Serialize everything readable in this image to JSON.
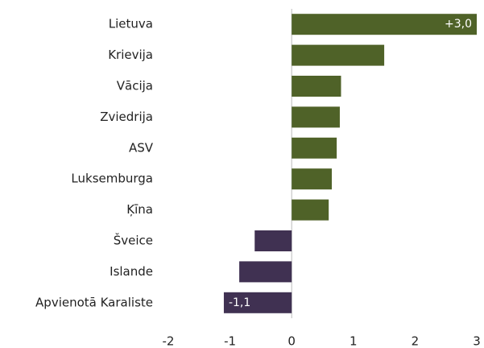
{
  "chart_data": {
    "type": "hbar",
    "categories": [
      "Lietuva",
      "Krievija",
      "Vācija",
      "Zviedrija",
      "ASV",
      "Luksemburga",
      "Ķīna",
      "Šveice",
      "Islande",
      "Apvienotā Karaliste"
    ],
    "values": [
      3.0,
      1.5,
      0.8,
      0.78,
      0.73,
      0.65,
      0.6,
      -0.6,
      -0.85,
      -1.1
    ],
    "value_labels": [
      "+3,0",
      null,
      null,
      null,
      null,
      null,
      null,
      null,
      null,
      "-1,1"
    ],
    "positive_color": "#4f6228",
    "negative_color": "#403152",
    "xlim": [
      -2,
      3
    ],
    "xticks": [
      -2,
      -1,
      0,
      1,
      2,
      3
    ],
    "grid": false
  }
}
